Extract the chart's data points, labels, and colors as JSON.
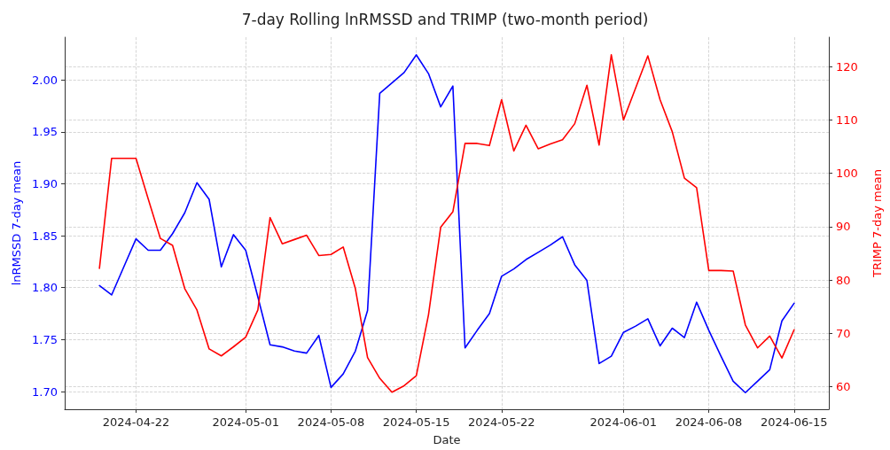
{
  "chart_data": {
    "type": "line",
    "title": "7-day Rolling lnRMSSD and TRIMP (two-month period)",
    "xlabel": "Date",
    "ylabel": "lnRMSSD 7-day mean",
    "y2label": "TRIMP 7-day mean",
    "x": [
      "2024-04-19",
      "2024-04-20",
      "2024-04-21",
      "2024-04-22",
      "2024-04-23",
      "2024-04-24",
      "2024-04-25",
      "2024-04-26",
      "2024-04-27",
      "2024-04-28",
      "2024-04-29",
      "2024-04-30",
      "2024-05-01",
      "2024-05-02",
      "2024-05-03",
      "2024-05-04",
      "2024-05-05",
      "2024-05-06",
      "2024-05-07",
      "2024-05-08",
      "2024-05-09",
      "2024-05-10",
      "2024-05-11",
      "2024-05-12",
      "2024-05-13",
      "2024-05-14",
      "2024-05-15",
      "2024-05-16",
      "2024-05-17",
      "2024-05-18",
      "2024-05-19",
      "2024-05-20",
      "2024-05-21",
      "2024-05-22",
      "2024-05-23",
      "2024-05-24",
      "2024-05-25",
      "2024-05-26",
      "2024-05-27",
      "2024-05-28",
      "2024-05-29",
      "2024-05-30",
      "2024-05-31",
      "2024-06-01",
      "2024-06-02",
      "2024-06-03",
      "2024-06-04",
      "2024-06-05",
      "2024-06-06",
      "2024-06-07",
      "2024-06-08",
      "2024-06-09",
      "2024-06-10",
      "2024-06-11",
      "2024-06-12",
      "2024-06-13",
      "2024-06-14",
      "2024-06-15"
    ],
    "series": [
      {
        "color": "#0000ff",
        "values": [
          1.802,
          1.793,
          1.82,
          1.847,
          1.836,
          1.836,
          1.852,
          1.872,
          1.901,
          1.885,
          1.82,
          1.851,
          1.836,
          1.791,
          1.745,
          1.743,
          1.739,
          1.737,
          1.754,
          1.704,
          1.717,
          1.739,
          1.778,
          1.987,
          1.997,
          2.007,
          2.024,
          2.006,
          1.974,
          1.994,
          1.742,
          1.759,
          1.775,
          1.811,
          1.818,
          1.827,
          1.834,
          1.841,
          1.849,
          1.822,
          1.807,
          1.727,
          1.734,
          1.757,
          1.763,
          1.77,
          1.744,
          1.761,
          1.752,
          1.786,
          1.759,
          1.734,
          1.71,
          1.699,
          1.71,
          1.721,
          1.768,
          1.785
        ]
      },
      {
        "color": "#ff0000",
        "axis": "y2",
        "values": [
          82.2,
          102.8,
          102.8,
          102.8,
          95.2,
          87.8,
          86.5,
          78.4,
          74.4,
          67.1,
          65.8,
          67.5,
          69.3,
          74.4,
          91.7,
          86.8,
          87.6,
          88.4,
          84.6,
          84.8,
          86.2,
          78.4,
          65.5,
          61.6,
          59.0,
          60.2,
          62.1,
          73.5,
          89.9,
          92.8,
          105.6,
          105.6,
          105.2,
          113.8,
          104.2,
          109.0,
          104.6,
          105.5,
          106.3,
          109.3,
          116.5,
          105.3,
          122.2,
          110.0,
          116.0,
          122.0,
          113.8,
          107.8,
          99.1,
          97.3,
          81.8,
          81.8,
          81.7,
          71.6,
          67.3,
          69.5,
          65.4,
          70.7
        ]
      }
    ],
    "xlim": [
      "2024-04-16T03:36",
      "2024-06-17T20:24"
    ],
    "xticks": [
      "2024-04-22",
      "2024-05-01",
      "2024-05-08",
      "2024-05-15",
      "2024-05-22",
      "2024-06-01",
      "2024-06-08",
      "2024-06-15"
    ],
    "ylim": [
      1.683,
      2.041
    ],
    "yticks": [
      {
        "value": 1.7,
        "label": "1.70"
      },
      1.75,
      {
        "value": 1.8,
        "label": "1.80"
      },
      1.85,
      {
        "value": 1.9,
        "label": "1.90"
      },
      1.95,
      {
        "value": 2.0,
        "label": "2.00"
      }
    ],
    "y2lim": [
      55.8,
      125.5
    ],
    "y2ticks": [
      60,
      70,
      80,
      90,
      100,
      110,
      120
    ],
    "grid": true,
    "marker": "none",
    "line_style": "solid"
  }
}
